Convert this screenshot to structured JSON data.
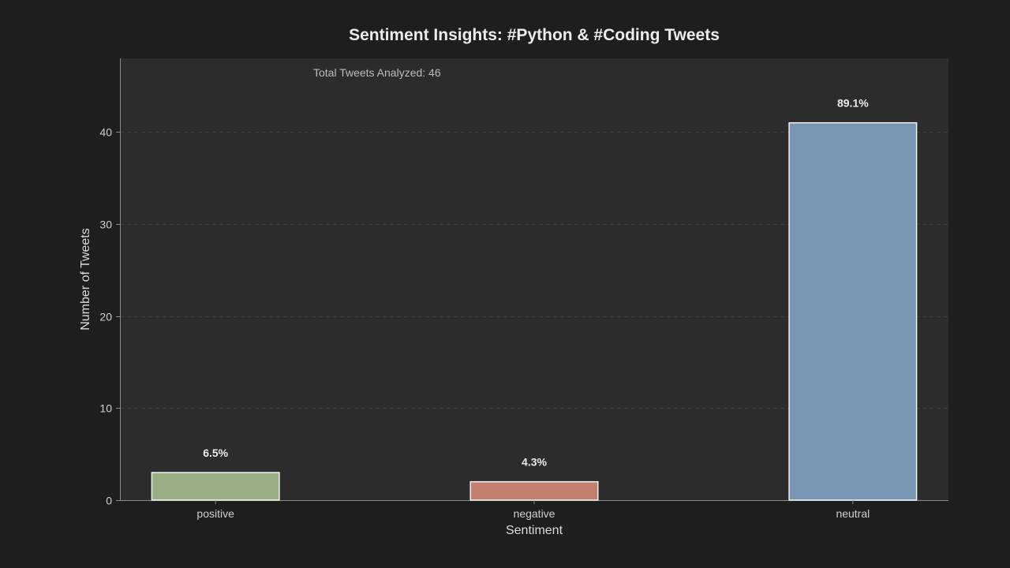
{
  "chart_data": {
    "type": "bar",
    "title": "Sentiment Insights: #Python & #Coding Tweets",
    "xlabel": "Sentiment",
    "ylabel": "Number of Tweets",
    "annotation": "Total Tweets Analyzed: 46",
    "categories": [
      "positive",
      "negative",
      "neutral"
    ],
    "values": [
      3,
      2,
      41
    ],
    "data_labels": [
      "6.5%",
      "4.3%",
      "89.1%"
    ],
    "colors": [
      "#99b084",
      "#c4806e",
      "#7896b4"
    ],
    "ylim": [
      0,
      48
    ],
    "yticks": [
      0,
      10,
      20,
      30,
      40
    ],
    "grid": true
  }
}
